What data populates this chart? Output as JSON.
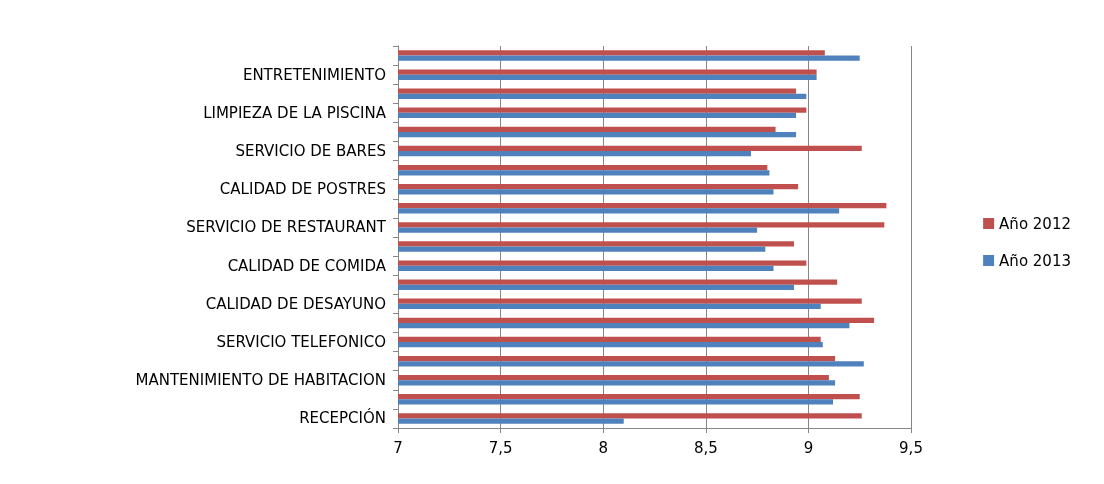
{
  "chart_data": {
    "type": "bar",
    "orientation": "horizontal",
    "categories": [
      null,
      "ENTRETENIMIENTO",
      null,
      "LIMPIEZA DE LA PISCINA",
      null,
      "SERVICIO DE BARES",
      null,
      "CALIDAD DE POSTRES",
      null,
      "SERVICIO DE RESTAURANT",
      null,
      "CALIDAD DE COMIDA",
      null,
      "CALIDAD DE DESAYUNO",
      null,
      "SERVICIO TELEFONICO",
      null,
      "MANTENIMIENTO DE HABITACION",
      null,
      "RECEPCIÓN"
    ],
    "series": [
      {
        "name": "Año 2012",
        "color": "#c0504d",
        "values": [
          9.08,
          9.04,
          8.94,
          8.99,
          8.84,
          9.26,
          8.8,
          8.95,
          9.38,
          9.37,
          8.93,
          8.99,
          9.14,
          9.26,
          9.32,
          9.06,
          9.13,
          9.1,
          9.25,
          9.26
        ]
      },
      {
        "name": "Año 2013",
        "color": "#4f81bd",
        "values": [
          9.25,
          9.04,
          8.99,
          8.94,
          8.94,
          8.72,
          8.81,
          8.83,
          9.15,
          8.75,
          8.79,
          8.83,
          8.93,
          9.06,
          9.2,
          9.07,
          9.27,
          9.13,
          9.12,
          8.1
        ]
      }
    ],
    "xlim": [
      7,
      9.5
    ],
    "xticks": [
      7,
      {
        "value": 7.5,
        "label": "7,5"
      },
      8,
      {
        "value": 8.5,
        "label": "8,5"
      },
      9,
      {
        "value": 9.5,
        "label": "9,5"
      }
    ],
    "grid": "x",
    "legend": "right"
  }
}
